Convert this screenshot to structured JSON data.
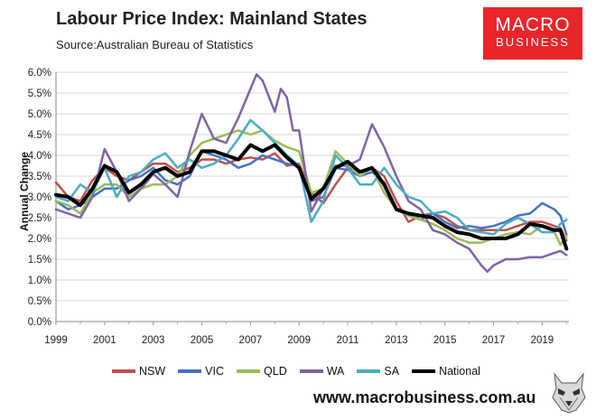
{
  "header": {
    "title": "Labour Price Index: Mainland States",
    "source": "Source:Australian Bureau of Statistics"
  },
  "logo": {
    "line1": "MACRO",
    "line2": "BUSINESS",
    "color": "#e8262a"
  },
  "footer": {
    "website": "www.macrobusiness.com.au"
  },
  "chart_data": {
    "type": "line",
    "title": "Labour Price Index: Mainland States",
    "xlabel": "",
    "ylabel": "Annual Change",
    "xlim": [
      1999,
      2020.1
    ],
    "ylim": [
      0,
      6
    ],
    "x_ticks": [
      "1999",
      "2001",
      "2003",
      "2005",
      "2007",
      "2009",
      "2011",
      "2013",
      "2015",
      "2017",
      "2019"
    ],
    "y_ticks": [
      "0.0%",
      "0.5%",
      "1.0%",
      "1.5%",
      "2.0%",
      "2.5%",
      "3.0%",
      "3.5%",
      "4.0%",
      "4.5%",
      "5.0%",
      "5.5%",
      "6.0%"
    ],
    "grid": "horizontal",
    "legend_position": "bottom",
    "series": [
      {
        "name": "NSW",
        "color": "#c0504d",
        "width": 2.5,
        "x": [
          1999.0,
          1999.5,
          2000.0,
          2000.5,
          2001.0,
          2001.5,
          2002.0,
          2002.5,
          2003.0,
          2003.5,
          2004.0,
          2004.5,
          2005.0,
          2005.5,
          2006.0,
          2006.5,
          2007.0,
          2007.5,
          2008.0,
          2008.5,
          2009.0,
          2009.5,
          2010.0,
          2010.5,
          2011.0,
          2011.5,
          2012.0,
          2012.5,
          2013.0,
          2013.5,
          2014.0,
          2014.5,
          2015.0,
          2015.5,
          2016.0,
          2016.5,
          2017.0,
          2017.5,
          2018.0,
          2018.5,
          2019.0,
          2019.5,
          2019.75,
          2020.0
        ],
        "y": [
          3.35,
          3.0,
          2.9,
          3.4,
          3.7,
          3.5,
          3.4,
          3.6,
          3.8,
          3.8,
          3.6,
          3.7,
          3.9,
          3.9,
          3.8,
          3.9,
          3.95,
          3.9,
          4.05,
          3.75,
          3.8,
          3.1,
          2.85,
          3.3,
          3.7,
          3.6,
          3.7,
          3.5,
          2.9,
          2.4,
          2.55,
          2.6,
          2.5,
          2.3,
          2.2,
          2.2,
          2.2,
          2.2,
          2.3,
          2.4,
          2.4,
          2.3,
          2.25,
          1.95
        ]
      },
      {
        "name": "VIC",
        "color": "#4472c4",
        "width": 2.5,
        "x": [
          1999.0,
          1999.5,
          2000.0,
          2000.5,
          2001.0,
          2001.5,
          2002.0,
          2002.5,
          2003.0,
          2003.5,
          2004.0,
          2004.5,
          2005.0,
          2005.5,
          2006.0,
          2006.5,
          2007.0,
          2007.5,
          2008.0,
          2008.5,
          2009.0,
          2009.5,
          2010.0,
          2010.5,
          2011.0,
          2011.5,
          2012.0,
          2012.5,
          2013.0,
          2013.5,
          2014.0,
          2014.5,
          2015.0,
          2015.5,
          2016.0,
          2016.5,
          2017.0,
          2017.5,
          2018.0,
          2018.5,
          2019.0,
          2019.5,
          2019.75,
          2020.0
        ],
        "y": [
          2.9,
          2.7,
          2.8,
          3.0,
          3.2,
          3.2,
          3.4,
          3.5,
          3.7,
          3.4,
          3.3,
          3.5,
          4.1,
          4.0,
          3.9,
          3.7,
          3.8,
          4.0,
          3.9,
          3.8,
          3.75,
          2.9,
          3.0,
          3.7,
          3.65,
          3.5,
          3.6,
          3.35,
          2.7,
          2.55,
          2.45,
          2.6,
          2.4,
          2.25,
          2.3,
          2.25,
          2.3,
          2.4,
          2.55,
          2.6,
          2.85,
          2.7,
          2.55,
          2.1
        ]
      },
      {
        "name": "QLD",
        "color": "#9bbb59",
        "width": 2.5,
        "x": [
          1999.0,
          1999.5,
          2000.0,
          2000.5,
          2001.0,
          2001.5,
          2002.0,
          2002.5,
          2003.0,
          2003.5,
          2004.0,
          2004.5,
          2005.0,
          2005.5,
          2006.0,
          2006.5,
          2007.0,
          2007.5,
          2008.0,
          2008.5,
          2009.0,
          2009.5,
          2010.0,
          2010.5,
          2011.0,
          2011.5,
          2012.0,
          2012.5,
          2013.0,
          2013.5,
          2014.0,
          2014.5,
          2015.0,
          2015.5,
          2016.0,
          2016.5,
          2017.0,
          2017.5,
          2018.0,
          2018.5,
          2019.0,
          2019.5,
          2019.75,
          2020.0
        ],
        "y": [
          2.9,
          2.8,
          2.6,
          3.1,
          3.3,
          3.3,
          3.0,
          3.2,
          3.3,
          3.3,
          3.5,
          4.0,
          4.3,
          4.4,
          4.5,
          4.6,
          4.5,
          4.6,
          4.35,
          4.2,
          4.1,
          3.1,
          3.2,
          4.1,
          3.8,
          3.5,
          3.7,
          3.1,
          2.7,
          2.55,
          2.45,
          2.35,
          2.2,
          2.0,
          1.9,
          1.9,
          2.0,
          2.1,
          2.15,
          2.1,
          2.3,
          2.15,
          1.85,
          2.05
        ]
      },
      {
        "name": "WA",
        "color": "#8064a2",
        "width": 2.5,
        "x": [
          1999.0,
          1999.5,
          2000.0,
          2000.5,
          2001.0,
          2001.5,
          2002.0,
          2002.5,
          2003.0,
          2003.5,
          2004.0,
          2004.5,
          2005.0,
          2005.5,
          2006.0,
          2006.5,
          2007.0,
          2007.25,
          2007.5,
          2008.0,
          2008.25,
          2008.5,
          2008.75,
          2009.0,
          2009.5,
          2010.0,
          2010.5,
          2011.0,
          2011.5,
          2012.0,
          2012.5,
          2013.0,
          2013.5,
          2014.0,
          2014.5,
          2015.0,
          2015.5,
          2016.0,
          2016.5,
          2016.75,
          2017.0,
          2017.5,
          2018.0,
          2018.5,
          2019.0,
          2019.5,
          2019.75,
          2020.0
        ],
        "y": [
          2.7,
          2.6,
          2.5,
          3.0,
          4.15,
          3.6,
          2.9,
          3.2,
          3.55,
          3.3,
          3.0,
          4.1,
          5.0,
          4.4,
          4.3,
          4.9,
          5.6,
          5.95,
          5.8,
          5.05,
          5.6,
          5.4,
          4.6,
          4.6,
          2.65,
          3.2,
          3.75,
          3.75,
          3.9,
          4.75,
          4.2,
          3.5,
          2.9,
          2.7,
          2.2,
          2.1,
          1.9,
          1.75,
          1.35,
          1.2,
          1.35,
          1.5,
          1.5,
          1.55,
          1.55,
          1.65,
          1.7,
          1.6
        ]
      },
      {
        "name": "SA",
        "color": "#4bacc6",
        "width": 2.5,
        "x": [
          1999.0,
          1999.5,
          2000.0,
          2000.5,
          2001.0,
          2001.5,
          2002.0,
          2002.5,
          2003.0,
          2003.5,
          2004.0,
          2004.5,
          2005.0,
          2005.5,
          2006.0,
          2006.5,
          2007.0,
          2007.5,
          2008.0,
          2008.5,
          2009.0,
          2009.5,
          2010.0,
          2010.5,
          2011.0,
          2011.5,
          2012.0,
          2012.5,
          2013.0,
          2013.5,
          2014.0,
          2014.5,
          2015.0,
          2015.5,
          2016.0,
          2016.5,
          2017.0,
          2017.5,
          2018.0,
          2018.5,
          2019.0,
          2019.5,
          2019.75,
          2020.0
        ],
        "y": [
          3.0,
          2.9,
          3.3,
          3.1,
          3.7,
          3.0,
          3.5,
          3.6,
          3.9,
          4.05,
          3.7,
          3.9,
          3.7,
          3.8,
          4.0,
          4.4,
          4.85,
          4.6,
          4.3,
          4.0,
          3.75,
          2.4,
          2.9,
          4.0,
          3.7,
          3.3,
          3.3,
          3.7,
          3.3,
          3.0,
          2.9,
          2.6,
          2.65,
          2.5,
          2.2,
          2.15,
          2.1,
          2.35,
          2.5,
          2.35,
          2.15,
          2.15,
          2.35,
          2.45
        ]
      },
      {
        "name": "National",
        "color": "#000000",
        "width": 4,
        "x": [
          1999.0,
          1999.5,
          2000.0,
          2000.5,
          2001.0,
          2001.5,
          2002.0,
          2002.5,
          2003.0,
          2003.5,
          2004.0,
          2004.5,
          2005.0,
          2005.5,
          2006.0,
          2006.5,
          2007.0,
          2007.5,
          2008.0,
          2008.5,
          2009.0,
          2009.5,
          2010.0,
          2010.5,
          2011.0,
          2011.5,
          2012.0,
          2012.5,
          2013.0,
          2013.5,
          2014.0,
          2014.5,
          2015.0,
          2015.5,
          2016.0,
          2016.5,
          2017.0,
          2017.5,
          2018.0,
          2018.5,
          2019.0,
          2019.5,
          2019.75,
          2020.0
        ],
        "y": [
          3.05,
          3.0,
          2.8,
          3.2,
          3.75,
          3.6,
          3.1,
          3.3,
          3.6,
          3.7,
          3.5,
          3.6,
          4.1,
          4.1,
          4.0,
          3.9,
          4.25,
          4.1,
          4.25,
          3.95,
          3.7,
          2.95,
          3.2,
          3.7,
          3.85,
          3.6,
          3.7,
          3.3,
          2.7,
          2.6,
          2.55,
          2.5,
          2.3,
          2.15,
          2.1,
          2.0,
          2.0,
          2.0,
          2.1,
          2.35,
          2.3,
          2.2,
          2.2,
          1.75
        ]
      }
    ]
  }
}
